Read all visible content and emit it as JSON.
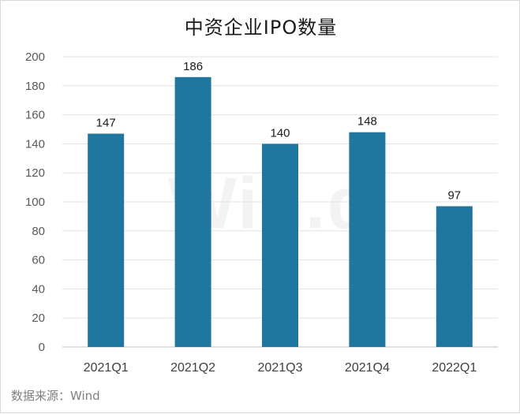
{
  "chart_data": {
    "type": "bar",
    "title": "中资企业IPO数量",
    "categories": [
      "2021Q1",
      "2021Q2",
      "2021Q3",
      "2021Q4",
      "2022Q1"
    ],
    "values": [
      147,
      186,
      140,
      148,
      97
    ],
    "ylim": [
      0,
      200
    ],
    "yticks": [
      0,
      20,
      40,
      60,
      80,
      100,
      120,
      140,
      160,
      180,
      200
    ],
    "xlabel": "",
    "ylabel": "",
    "grid": true,
    "legend": "none",
    "bar_color": "#1f77a0",
    "data_labels": true
  },
  "source": "数据来源：Wind",
  "watermark": "Win.d"
}
